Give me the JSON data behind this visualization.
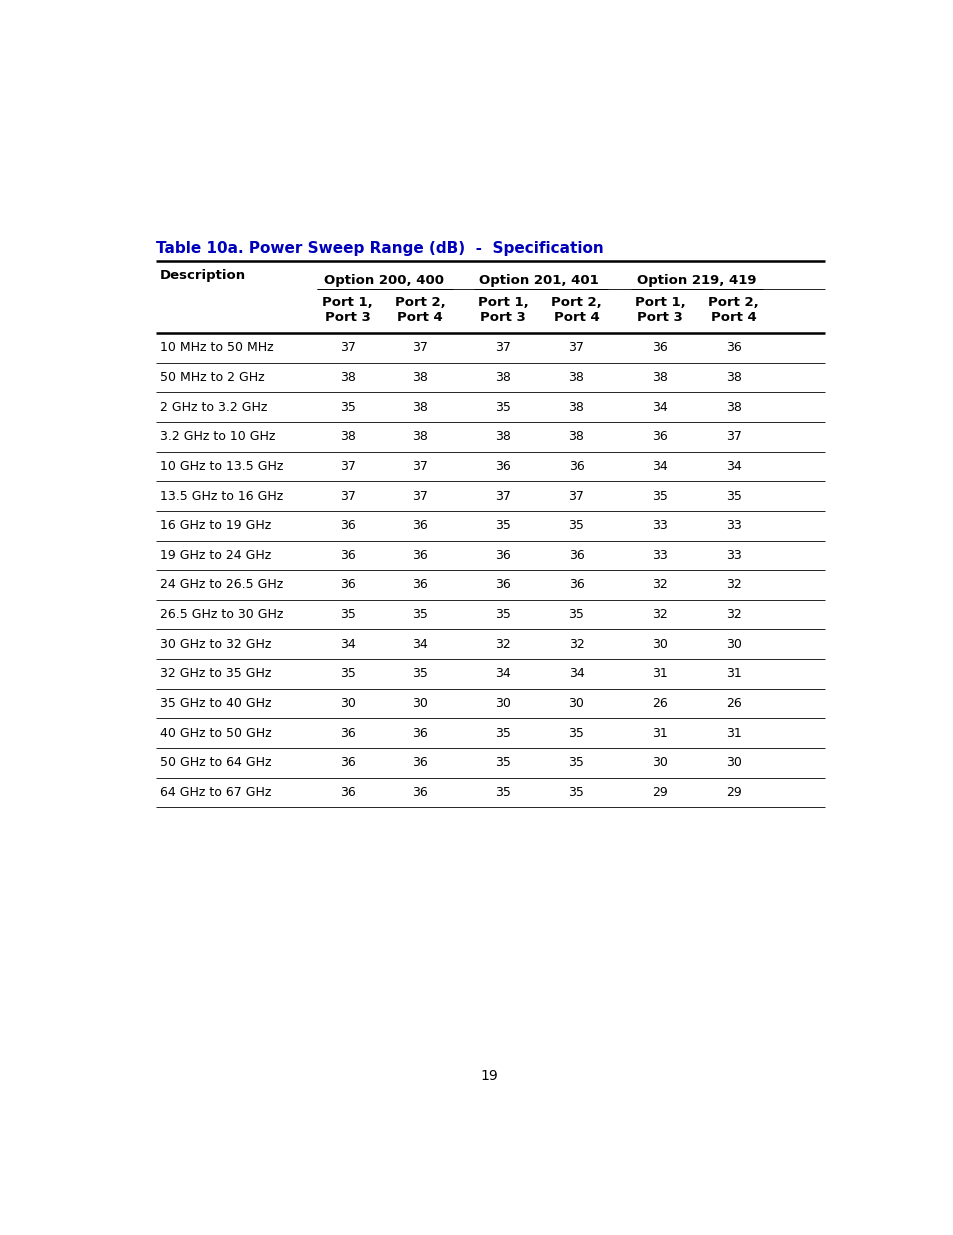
{
  "title": "Table 10a. Power Sweep Range (dB)  -  Specification",
  "title_color": "#0000BB",
  "option_labels": [
    "Option 200, 400",
    "Option 201, 401",
    "Option 219, 419"
  ],
  "port_labels": [
    "Port 1,\nPort 3",
    "Port 2,\nPort 4",
    "Port 1,\nPort 3",
    "Port 2,\nPort 4",
    "Port 1,\nPort 3",
    "Port 2,\nPort 4"
  ],
  "rows": [
    [
      "10 MHz to 50 MHz",
      "37",
      "37",
      "37",
      "37",
      "36",
      "36"
    ],
    [
      "50 MHz to 2 GHz",
      "38",
      "38",
      "38",
      "38",
      "38",
      "38"
    ],
    [
      "2 GHz to 3.2 GHz",
      "35",
      "38",
      "35",
      "38",
      "34",
      "38"
    ],
    [
      "3.2 GHz to 10 GHz",
      "38",
      "38",
      "38",
      "38",
      "36",
      "37"
    ],
    [
      "10 GHz to 13.5 GHz",
      "37",
      "37",
      "36",
      "36",
      "34",
      "34"
    ],
    [
      "13.5 GHz to 16 GHz",
      "37",
      "37",
      "37",
      "37",
      "35",
      "35"
    ],
    [
      "16 GHz to 19 GHz",
      "36",
      "36",
      "35",
      "35",
      "33",
      "33"
    ],
    [
      "19 GHz to 24 GHz",
      "36",
      "36",
      "36",
      "36",
      "33",
      "33"
    ],
    [
      "24 GHz to 26.5 GHz",
      "36",
      "36",
      "36",
      "36",
      "32",
      "32"
    ],
    [
      "26.5 GHz to 30 GHz",
      "35",
      "35",
      "35",
      "35",
      "32",
      "32"
    ],
    [
      "30 GHz to 32 GHz",
      "34",
      "34",
      "32",
      "32",
      "30",
      "30"
    ],
    [
      "32 GHz to 35 GHz",
      "35",
      "35",
      "34",
      "34",
      "31",
      "31"
    ],
    [
      "35 GHz to 40 GHz",
      "30",
      "30",
      "30",
      "30",
      "26",
      "26"
    ],
    [
      "40 GHz to 50 GHz",
      "36",
      "36",
      "35",
      "35",
      "31",
      "31"
    ],
    [
      "50 GHz to 64 GHz",
      "36",
      "36",
      "35",
      "35",
      "30",
      "30"
    ],
    [
      "64 GHz to 67 GHz",
      "36",
      "36",
      "35",
      "35",
      "29",
      "29"
    ]
  ],
  "page_number": "19",
  "bg_color": "#ffffff",
  "text_color": "#000000",
  "title_fontsize": 11.0,
  "header_fontsize": 9.5,
  "data_fontsize": 9.0
}
